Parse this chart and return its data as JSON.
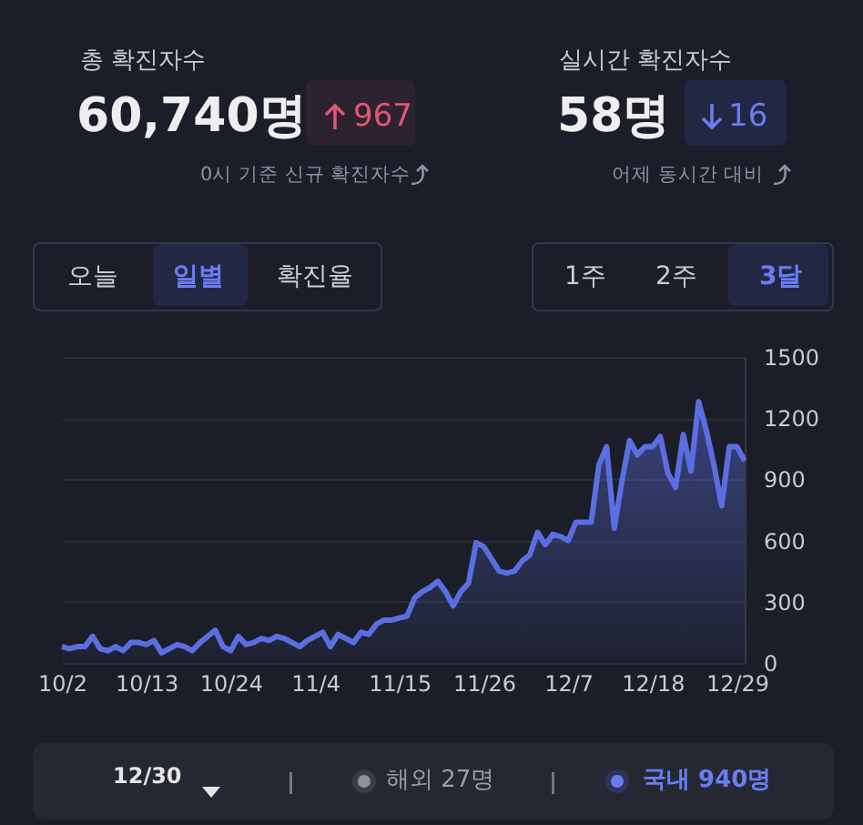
{
  "chart_data": {
    "type": "area",
    "x": [
      "--10-02",
      "--10-03",
      "--10-04",
      "--10-05",
      "--10-06",
      "--10-07",
      "--10-08",
      "--10-09",
      "--10-10",
      "--10-11",
      "--10-12",
      "--10-13",
      "--10-14",
      "--10-15",
      "--10-16",
      "--10-17",
      "--10-18",
      "--10-19",
      "--10-20",
      "--10-21",
      "--10-22",
      "--10-23",
      "--10-24",
      "--10-25",
      "--10-26",
      "--10-27",
      "--10-28",
      "--10-29",
      "--10-30",
      "--10-31",
      "--11-01",
      "--11-02",
      "--11-03",
      "--11-04",
      "--11-05",
      "--11-06",
      "--11-07",
      "--11-08",
      "--11-09",
      "--11-10",
      "--11-11",
      "--11-12",
      "--11-13",
      "--11-14",
      "--11-15",
      "--11-16",
      "--11-17",
      "--11-18",
      "--11-19",
      "--11-20",
      "--11-21",
      "--11-22",
      "--11-23",
      "--11-24",
      "--11-25",
      "--11-26",
      "--11-27",
      "--11-28",
      "--11-29",
      "--11-30",
      "--12-01",
      "--12-02",
      "--12-03",
      "--12-04",
      "--12-05",
      "--12-06",
      "--12-07",
      "--12-08",
      "--12-09",
      "--12-10",
      "--12-11",
      "--12-12",
      "--12-13",
      "--12-14",
      "--12-15",
      "--12-16",
      "--12-17",
      "--12-18",
      "--12-19",
      "--12-20",
      "--12-21",
      "--12-22",
      "--12-23",
      "--12-24",
      "--12-25",
      "--12-26",
      "--12-27",
      "--12-28",
      "--12-29",
      "--12-30"
    ],
    "series": [
      {
        "color": "#5b6ee1",
        "values": [
          80,
          70,
          80,
          80,
          130,
          70,
          60,
          80,
          60,
          100,
          100,
          90,
          110,
          50,
          70,
          90,
          80,
          60,
          100,
          130,
          160,
          80,
          60,
          130,
          90,
          100,
          120,
          110,
          130,
          120,
          100,
          80,
          110,
          130,
          150,
          80,
          140,
          120,
          100,
          150,
          140,
          190,
          210,
          210,
          220,
          230,
          320,
          350,
          370,
          400,
          350,
          280,
          350,
          390,
          590,
          570,
          510,
          450,
          440,
          450,
          500,
          530,
          640,
          580,
          630,
          620,
          600,
          690,
          690,
          690,
          970,
          1060,
          660,
          890,
          1090,
          1020,
          1060,
          1060,
          1110,
          930,
          860,
          1120,
          940,
          1280,
          1140,
          970,
          770,
          1060,
          1060,
          990
        ]
      }
    ],
    "xlim": [
      "--10-02",
      "--12-30"
    ],
    "xticks": [
      {
        "value": "--10-02",
        "label": "10/2"
      },
      {
        "value": "--10-13",
        "label": "10/13"
      },
      {
        "value": "--10-24",
        "label": "10/24"
      },
      {
        "value": "--11-04",
        "label": "11/4"
      },
      {
        "value": "--11-15",
        "label": "11/15"
      },
      {
        "value": "--11-26",
        "label": "11/26"
      },
      {
        "value": "--12-07",
        "label": "12/7"
      },
      {
        "value": "--12-18",
        "label": "12/18"
      },
      {
        "value": "--12-29",
        "label": "12/29"
      }
    ],
    "ylim": [
      0,
      1500
    ],
    "yticks": [
      0,
      300,
      600,
      900,
      1200,
      1500
    ],
    "grid": "y",
    "annotations": [
      "총 확진자수",
      "60,740명",
      "967",
      "0시 기준 신규 확진자수",
      "실시간 확진자수",
      "58명",
      "16",
      "어제 동시간 대비",
      "오늘",
      "일별",
      "확진율",
      "1주",
      "2주",
      "3달",
      "12/30",
      "해외 27명",
      "국내 940명"
    ]
  }
}
